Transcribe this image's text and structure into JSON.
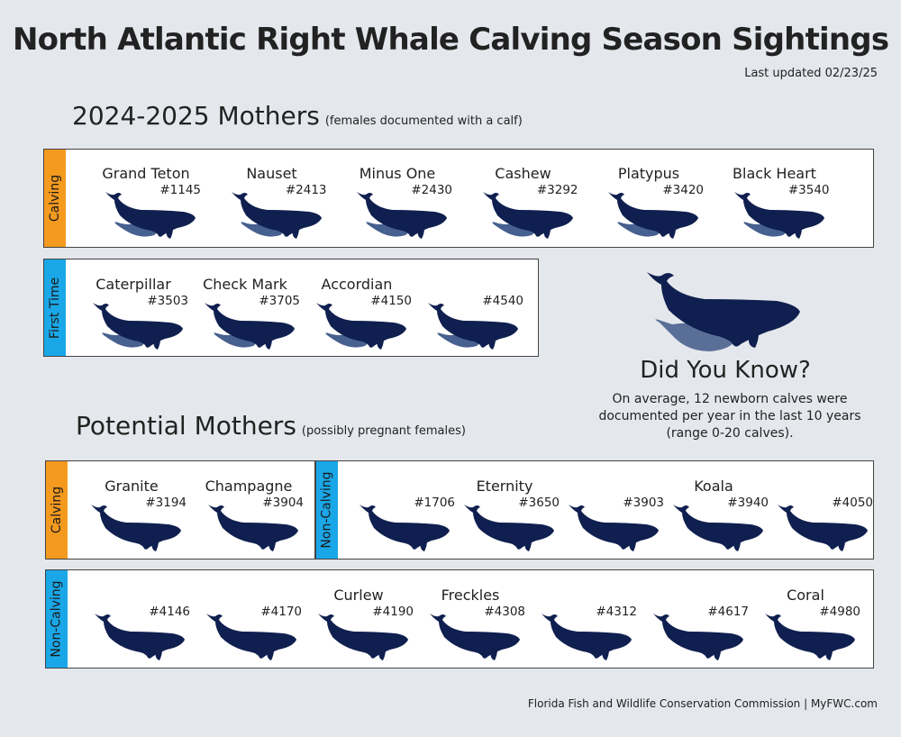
{
  "title": "North Atlantic Right Whale Calving Season Sightings",
  "updated": "Last updated 02/23/25",
  "mothers": {
    "heading": "2024-2025 Mothers",
    "sub": "(females documented with a calf)",
    "calving": {
      "tag": "Calving",
      "whales": [
        {
          "name": "Grand Teton",
          "id": "#1145"
        },
        {
          "name": "Nauset",
          "id": "#2413"
        },
        {
          "name": "Minus One",
          "id": "#2430"
        },
        {
          "name": "Cashew",
          "id": "#3292"
        },
        {
          "name": "Platypus",
          "id": "#3420"
        },
        {
          "name": "Black Heart",
          "id": "#3540"
        }
      ]
    },
    "first_time": {
      "tag": "First Time",
      "whales": [
        {
          "name": "Caterpillar",
          "id": "#3503"
        },
        {
          "name": "Check Mark",
          "id": "#3705"
        },
        {
          "name": "Accordian",
          "id": "#4150"
        },
        {
          "name": "",
          "id": "#4540"
        }
      ]
    }
  },
  "did_you_know": {
    "title": "Did You Know?",
    "text": "On average, 12 newborn calves were documented per year in the last 10 years (range 0-20 calves)."
  },
  "potential": {
    "heading": "Potential Mothers",
    "sub": "(possibly pregnant females)",
    "calving": {
      "tag": "Calving",
      "whales": [
        {
          "name": "Granite",
          "id": "#3194"
        },
        {
          "name": "Champagne",
          "id": "#3904"
        }
      ]
    },
    "non_calving_top": {
      "tag": "Non-Calving",
      "whales": [
        {
          "name": "",
          "id": "#1706"
        },
        {
          "name": "Eternity",
          "id": "#3650"
        },
        {
          "name": "",
          "id": "#3903"
        },
        {
          "name": "Koala",
          "id": "#3940"
        },
        {
          "name": "",
          "id": "#4050"
        }
      ]
    },
    "non_calving_bottom": {
      "tag": "Non-Calving",
      "whales": [
        {
          "name": "",
          "id": "#4146"
        },
        {
          "name": "",
          "id": "#4170"
        },
        {
          "name": "Curlew",
          "id": "#4190"
        },
        {
          "name": "Freckles",
          "id": "#4308"
        },
        {
          "name": "",
          "id": "#4312"
        },
        {
          "name": "",
          "id": "#4617"
        },
        {
          "name": "Coral",
          "id": "#4980"
        }
      ]
    }
  },
  "footer": "Florida Fish and Wildlife Conservation Commission  |  MyFWC.com",
  "colors": {
    "whale": "#0f1f4f",
    "calf": "#46608f",
    "calving_tag": "#f49a1f",
    "first_time_tag": "#1aa7e8",
    "background": "#e4e7ec"
  }
}
